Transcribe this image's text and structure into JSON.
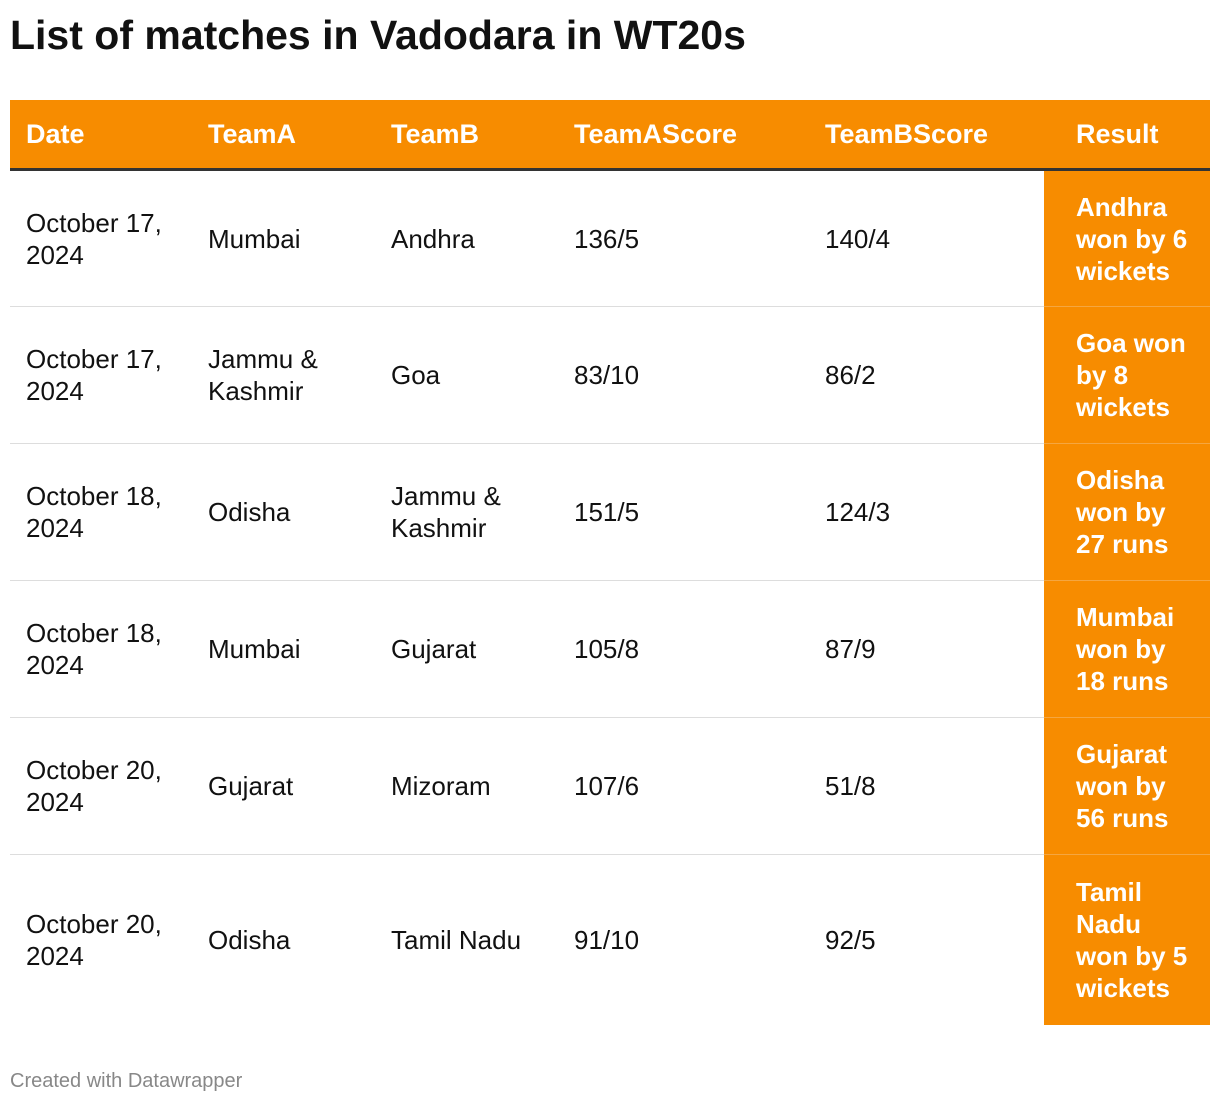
{
  "title": "List of matches in Vadodara in WT20s",
  "accent_color": "#f78c00",
  "footer": "Created with Datawrapper",
  "chart_data": {
    "type": "table",
    "title": "List of matches in Vadodara in WT20s",
    "columns": [
      "Date",
      "TeamA",
      "TeamB",
      "TeamAScore",
      "TeamBScore",
      "Result"
    ],
    "rows": [
      [
        "October 17, 2024",
        "Mumbai",
        "Andhra",
        "136/5",
        "140/4",
        "Andhra won by 6 wickets"
      ],
      [
        "October 17, 2024",
        "Jammu & Kashmir",
        "Goa",
        "83/10",
        "86/2",
        "Goa won by 8 wickets"
      ],
      [
        "October 18, 2024",
        "Odisha",
        "Jammu & Kashmir",
        "151/5",
        "124/3",
        "Odisha won by 27 runs"
      ],
      [
        "October 18, 2024",
        "Mumbai",
        "Gujarat",
        "105/8",
        "87/9",
        "Mumbai won by 18 runs"
      ],
      [
        "October 20, 2024",
        "Gujarat",
        "Mizoram",
        "107/6",
        "51/8",
        "Gujarat won by 56 runs"
      ],
      [
        "October 20, 2024",
        "Odisha",
        "Tamil Nadu",
        "91/10",
        "92/5",
        "Tamil Nadu won by 5 wickets"
      ]
    ]
  }
}
